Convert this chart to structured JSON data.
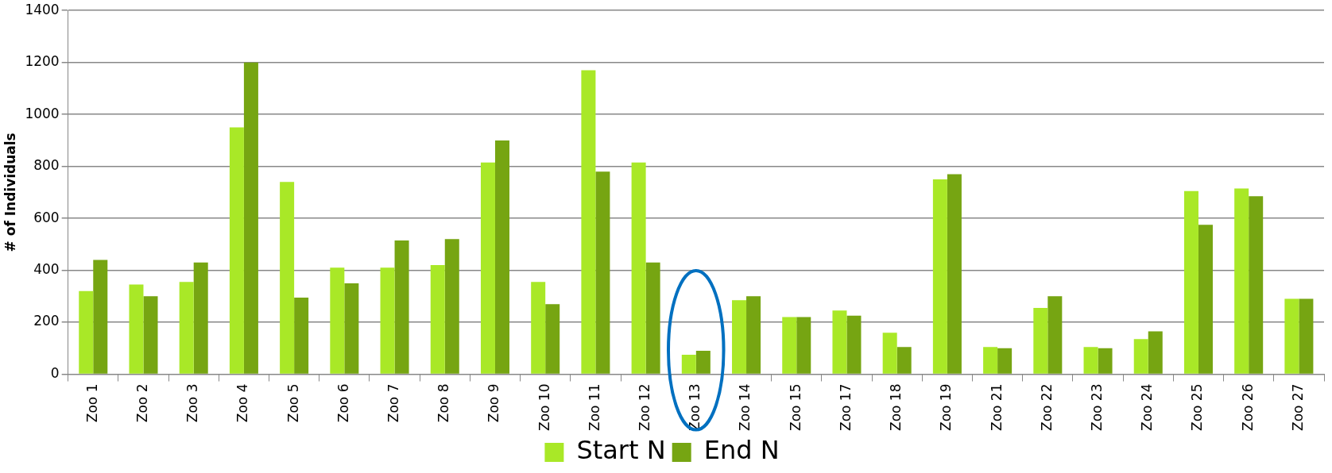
{
  "chart_data": {
    "type": "bar",
    "ylabel": "# of Individuals",
    "categories": [
      "Zoo 1",
      "Zoo 2",
      "Zoo 3",
      "Zoo 4",
      "Zoo 5",
      "Zoo 6",
      "Zoo 7",
      "Zoo 8",
      "Zoo 9",
      "Zoo 10",
      "Zoo 11",
      "Zoo 12",
      "Zoo 13",
      "Zoo 14",
      "Zoo 15",
      "Zoo 17",
      "Zoo 18",
      "Zoo 19",
      "Zoo 21",
      "Zoo 22",
      "Zoo 23",
      "Zoo 24",
      "Zoo 25",
      "Zoo 26",
      "Zoo 27"
    ],
    "series": [
      {
        "name": "Start N",
        "color": "#a9e827",
        "values": [
          320,
          345,
          355,
          950,
          740,
          410,
          410,
          420,
          815,
          355,
          1170,
          815,
          75,
          285,
          220,
          245,
          160,
          750,
          105,
          255,
          105,
          135,
          705,
          715,
          290
        ]
      },
      {
        "name": "End N",
        "color": "#76a512",
        "values": [
          440,
          300,
          430,
          1200,
          295,
          350,
          515,
          520,
          900,
          270,
          780,
          430,
          90,
          300,
          220,
          225,
          105,
          770,
          100,
          300,
          100,
          165,
          575,
          685,
          290
        ]
      }
    ],
    "ylim": [
      0,
      1400
    ],
    "yticks": [
      0,
      200,
      400,
      600,
      800,
      1000,
      1200,
      1400
    ],
    "grid": "y",
    "legend": "bottom"
  }
}
